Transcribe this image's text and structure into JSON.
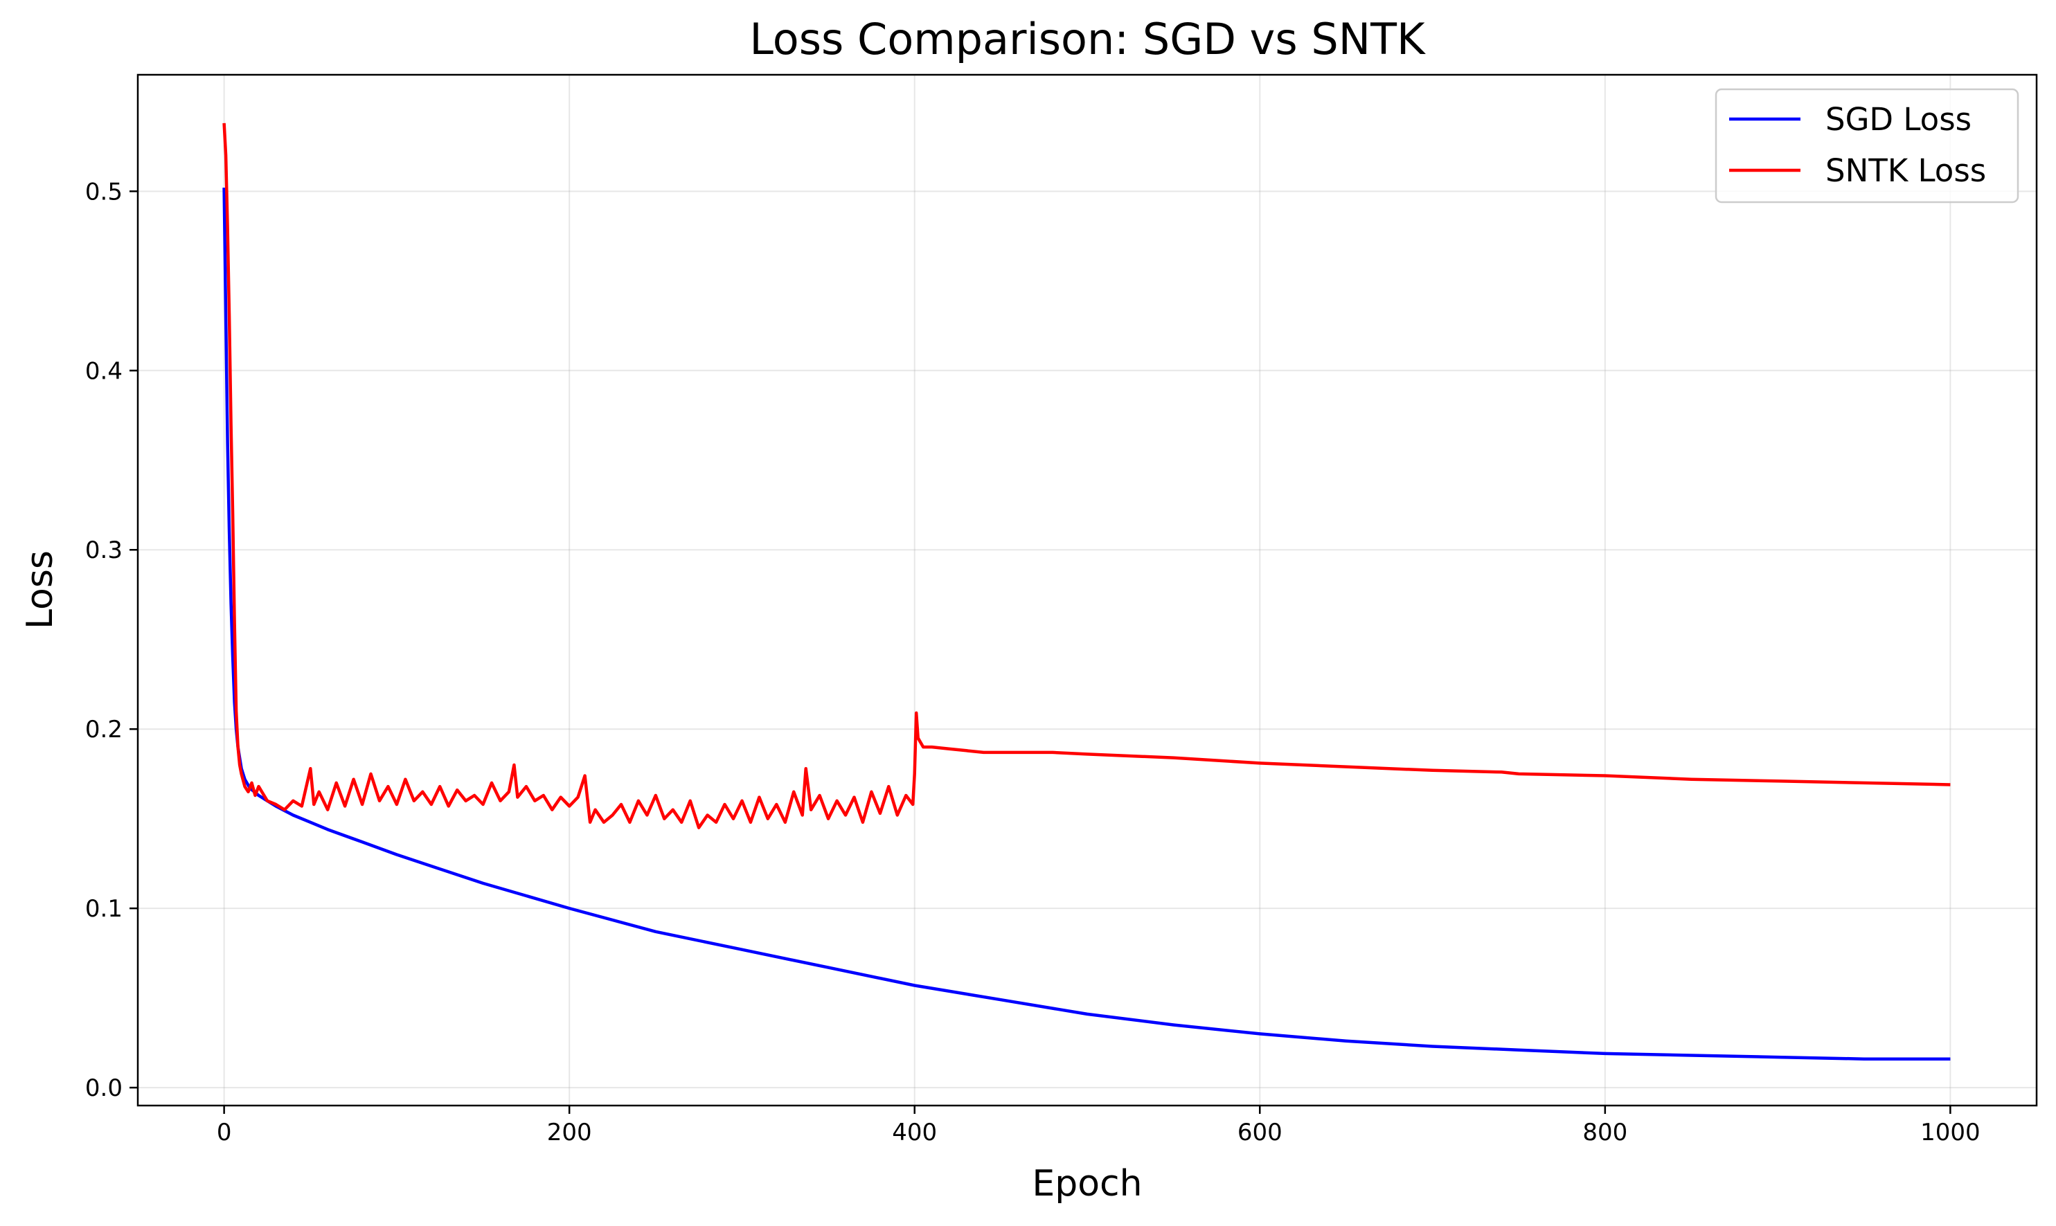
{
  "chart_data": {
    "type": "line",
    "title": "Loss Comparison: SGD vs SNTK",
    "xlabel": "Epoch",
    "ylabel": "Loss",
    "xlim": [
      -50,
      1050
    ],
    "ylim": [
      -0.01,
      0.565
    ],
    "xticks": [
      0,
      200,
      400,
      600,
      800,
      1000
    ],
    "xtick_labels": [
      "0",
      "200",
      "400",
      "600",
      "800",
      "1000"
    ],
    "yticks": [
      0.0,
      0.1,
      0.2,
      0.3,
      0.4,
      0.5
    ],
    "ytick_labels": [
      "0.0",
      "0.1",
      "0.2",
      "0.3",
      "0.4",
      "0.5"
    ],
    "grid": true,
    "legend_position": "top-right",
    "series": [
      {
        "name": "SGD Loss",
        "color": "#0000ff",
        "x": [
          0,
          1,
          2,
          3,
          4,
          5,
          6,
          7,
          8,
          10,
          12,
          15,
          20,
          25,
          30,
          40,
          50,
          60,
          80,
          100,
          125,
          150,
          175,
          200,
          250,
          300,
          350,
          400,
          450,
          500,
          550,
          600,
          650,
          700,
          750,
          800,
          850,
          900,
          950,
          1000
        ],
        "y": [
          0.502,
          0.43,
          0.36,
          0.31,
          0.27,
          0.24,
          0.215,
          0.2,
          0.19,
          0.178,
          0.172,
          0.167,
          0.163,
          0.16,
          0.157,
          0.152,
          0.148,
          0.144,
          0.137,
          0.13,
          0.122,
          0.114,
          0.107,
          0.1,
          0.087,
          0.077,
          0.067,
          0.057,
          0.049,
          0.041,
          0.035,
          0.03,
          0.026,
          0.023,
          0.021,
          0.019,
          0.018,
          0.017,
          0.016,
          0.016
        ]
      },
      {
        "name": "SNTK Loss",
        "color": "#ff0000",
        "x": [
          0,
          1,
          2,
          3,
          4,
          5,
          6,
          7,
          8,
          9,
          10,
          12,
          14,
          16,
          18,
          20,
          25,
          30,
          35,
          40,
          45,
          50,
          52,
          55,
          60,
          65,
          70,
          75,
          80,
          85,
          90,
          95,
          100,
          105,
          110,
          115,
          120,
          125,
          130,
          135,
          140,
          145,
          150,
          155,
          160,
          165,
          168,
          170,
          175,
          180,
          185,
          190,
          195,
          200,
          205,
          209,
          212,
          215,
          220,
          225,
          230,
          235,
          240,
          245,
          250,
          255,
          260,
          265,
          270,
          275,
          280,
          285,
          290,
          295,
          300,
          305,
          310,
          315,
          320,
          325,
          330,
          335,
          337,
          340,
          345,
          350,
          355,
          360,
          365,
          370,
          375,
          380,
          385,
          390,
          395,
          399,
          400,
          401,
          402,
          405,
          410,
          420,
          430,
          440,
          450,
          480,
          500,
          550,
          600,
          650,
          700,
          740,
          750,
          800,
          850,
          900,
          950,
          1000
        ],
        "y": [
          0.538,
          0.52,
          0.48,
          0.43,
          0.37,
          0.32,
          0.26,
          0.21,
          0.19,
          0.18,
          0.175,
          0.168,
          0.165,
          0.17,
          0.163,
          0.168,
          0.16,
          0.158,
          0.155,
          0.16,
          0.157,
          0.178,
          0.158,
          0.165,
          0.155,
          0.17,
          0.157,
          0.172,
          0.158,
          0.175,
          0.16,
          0.168,
          0.158,
          0.172,
          0.16,
          0.165,
          0.158,
          0.168,
          0.157,
          0.166,
          0.16,
          0.163,
          0.158,
          0.17,
          0.16,
          0.165,
          0.18,
          0.162,
          0.168,
          0.16,
          0.163,
          0.155,
          0.162,
          0.157,
          0.162,
          0.174,
          0.148,
          0.155,
          0.148,
          0.152,
          0.158,
          0.148,
          0.16,
          0.152,
          0.163,
          0.15,
          0.155,
          0.148,
          0.16,
          0.145,
          0.152,
          0.148,
          0.158,
          0.15,
          0.16,
          0.148,
          0.162,
          0.15,
          0.158,
          0.148,
          0.165,
          0.152,
          0.178,
          0.155,
          0.163,
          0.15,
          0.16,
          0.152,
          0.162,
          0.148,
          0.165,
          0.153,
          0.168,
          0.152,
          0.163,
          0.158,
          0.175,
          0.209,
          0.195,
          0.19,
          0.19,
          0.189,
          0.188,
          0.187,
          0.187,
          0.187,
          0.186,
          0.184,
          0.181,
          0.179,
          0.177,
          0.176,
          0.175,
          0.174,
          0.172,
          0.171,
          0.17,
          0.169
        ]
      }
    ]
  }
}
